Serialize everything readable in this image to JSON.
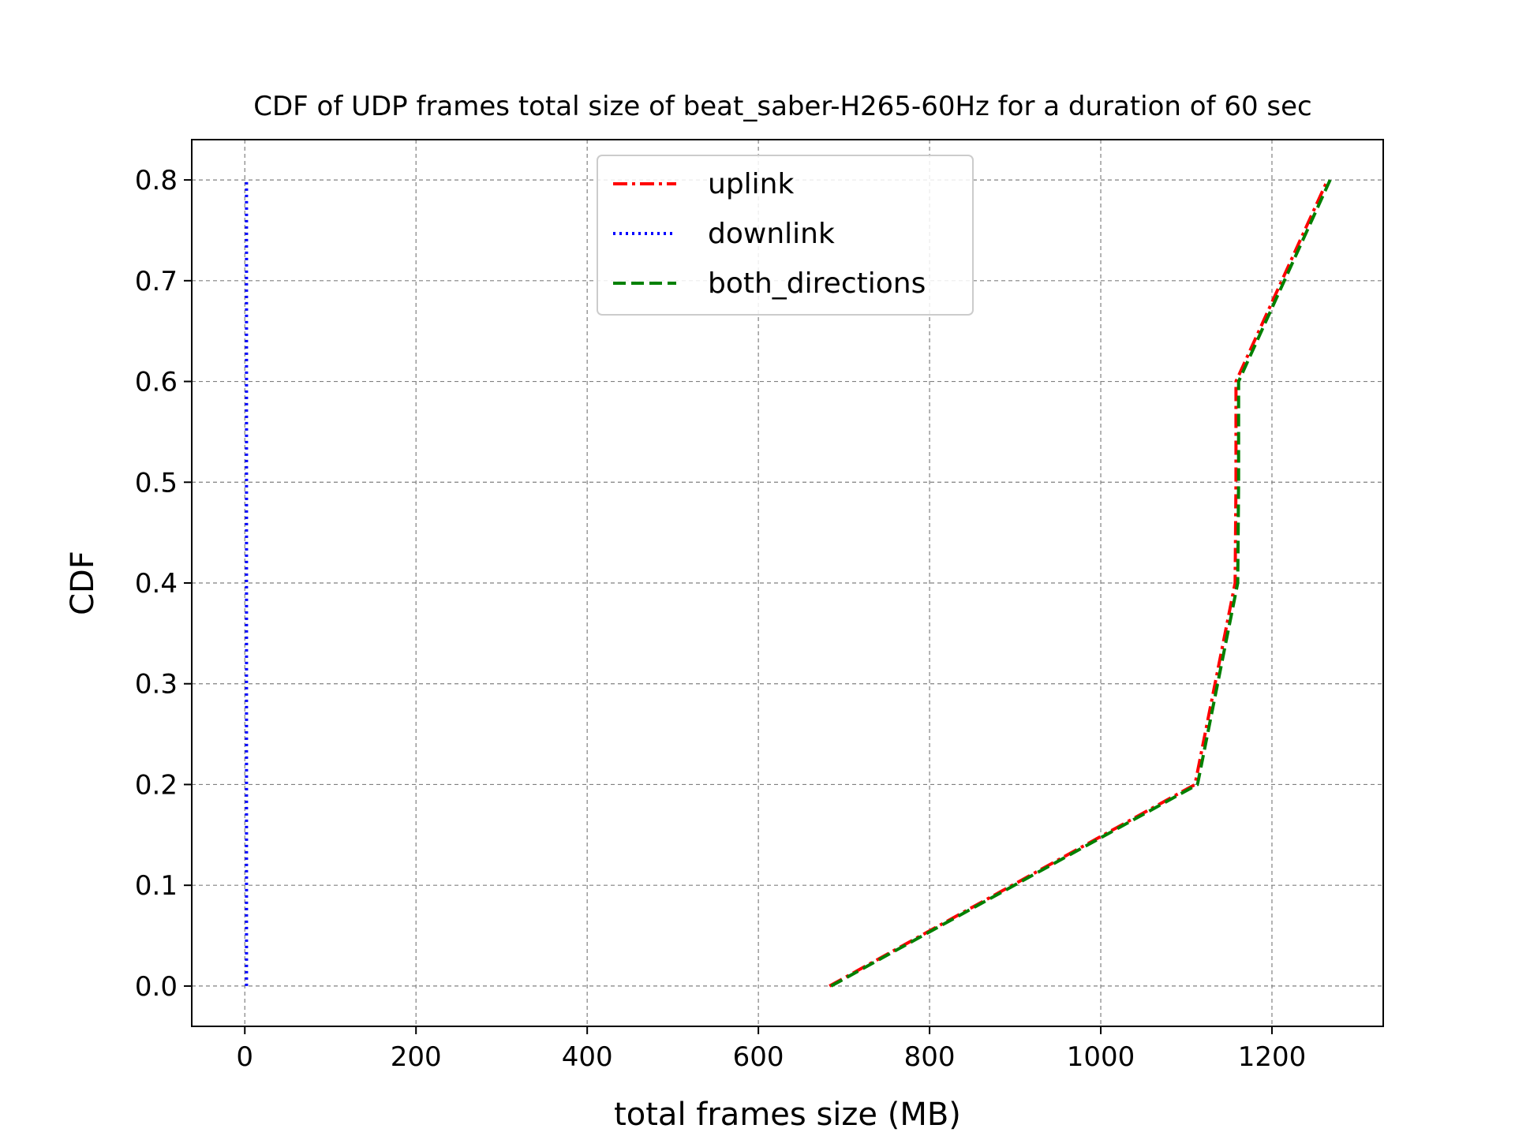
{
  "chart_data": {
    "type": "line",
    "title": "CDF of UDP frames total size of beat_saber-H265-60Hz for a duration of 60 sec",
    "xlabel": "total frames size (MB)",
    "ylabel": "CDF",
    "xlim": [
      -62,
      1330
    ],
    "ylim": [
      -0.04,
      0.84
    ],
    "xticks": [
      0,
      200,
      400,
      600,
      800,
      1000,
      1200
    ],
    "xtick_labels": [
      "0",
      "200",
      "400",
      "600",
      "800",
      "1000",
      "1200"
    ],
    "yticks": [
      0.0,
      0.1,
      0.2,
      0.3,
      0.4,
      0.5,
      0.6,
      0.7,
      0.8
    ],
    "ytick_labels": [
      "0.0",
      "0.1",
      "0.2",
      "0.3",
      "0.4",
      "0.5",
      "0.6",
      "0.7",
      "0.8"
    ],
    "grid": true,
    "legend_position": "top-center",
    "series": [
      {
        "name": "uplink",
        "color": "#ff0000",
        "style": "dashdot",
        "points": [
          [
            683,
            0.0
          ],
          [
            1110,
            0.2
          ],
          [
            1157,
            0.4
          ],
          [
            1158,
            0.5
          ],
          [
            1158,
            0.6
          ],
          [
            1265,
            0.8
          ]
        ]
      },
      {
        "name": "downlink",
        "color": "#0000ff",
        "style": "dotted",
        "points": [
          [
            2,
            0.0
          ],
          [
            2,
            0.2
          ],
          [
            2,
            0.4
          ],
          [
            2,
            0.6
          ],
          [
            2,
            0.8
          ]
        ]
      },
      {
        "name": "both_directions",
        "color": "#008000",
        "style": "dashed",
        "points": [
          [
            685,
            0.0
          ],
          [
            1113,
            0.2
          ],
          [
            1160,
            0.4
          ],
          [
            1161,
            0.5
          ],
          [
            1161,
            0.6
          ],
          [
            1268,
            0.8
          ]
        ]
      }
    ]
  }
}
